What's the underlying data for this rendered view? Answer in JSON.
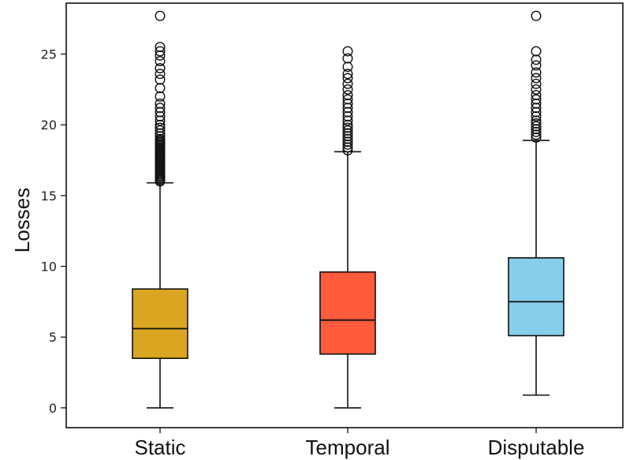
{
  "chart_data": {
    "type": "box",
    "categories": [
      "Static",
      "Temporal",
      "Disputable"
    ],
    "ylabel": "Losses",
    "xlabel": "",
    "title": "",
    "ylim": [
      -1.4,
      28.6
    ],
    "yticks": [
      0,
      5,
      10,
      15,
      20,
      25
    ],
    "grid": false,
    "boxes": [
      {
        "name": "Static",
        "color": "#DAA520",
        "whisker_low": 0,
        "q1": 3.5,
        "median": 5.6,
        "q3": 8.4,
        "whisker_high": 15.9,
        "outliers": [
          16.0,
          16.1,
          16.2,
          16.3,
          16.4,
          16.5,
          16.6,
          16.7,
          16.8,
          16.9,
          17.0,
          17.1,
          17.2,
          17.3,
          17.4,
          17.5,
          17.6,
          17.7,
          17.8,
          17.9,
          18.0,
          18.1,
          18.2,
          18.3,
          18.4,
          18.5,
          18.6,
          18.7,
          18.8,
          18.9,
          19.0,
          19.2,
          19.4,
          19.6,
          19.8,
          20.0,
          20.3,
          20.6,
          20.9,
          21.2,
          21.5,
          22.0,
          22.6,
          23.2,
          23.6,
          24.0,
          24.5,
          24.9,
          25.2,
          25.5,
          27.7
        ]
      },
      {
        "name": "Temporal",
        "color": "#FF5B3C",
        "whisker_low": 0,
        "q1": 3.8,
        "median": 6.2,
        "q3": 9.6,
        "whisker_high": 18.1,
        "outliers": [
          18.2,
          18.4,
          18.6,
          18.8,
          19.0,
          19.2,
          19.4,
          19.6,
          19.8,
          20.0,
          20.3,
          20.6,
          20.9,
          21.2,
          21.5,
          21.8,
          22.1,
          22.5,
          22.9,
          23.3,
          23.6,
          24.1,
          24.7,
          25.2
        ]
      },
      {
        "name": "Disputable",
        "color": "#87CEEB",
        "whisker_low": 0.9,
        "q1": 5.1,
        "median": 7.5,
        "q3": 10.6,
        "whisker_high": 18.9,
        "outliers": [
          19.1,
          19.3,
          19.5,
          19.7,
          19.9,
          20.1,
          20.3,
          20.6,
          20.9,
          21.2,
          21.5,
          21.8,
          22.1,
          22.5,
          22.9,
          23.3,
          23.7,
          24.2,
          24.6,
          25.2,
          27.7
        ]
      }
    ]
  }
}
